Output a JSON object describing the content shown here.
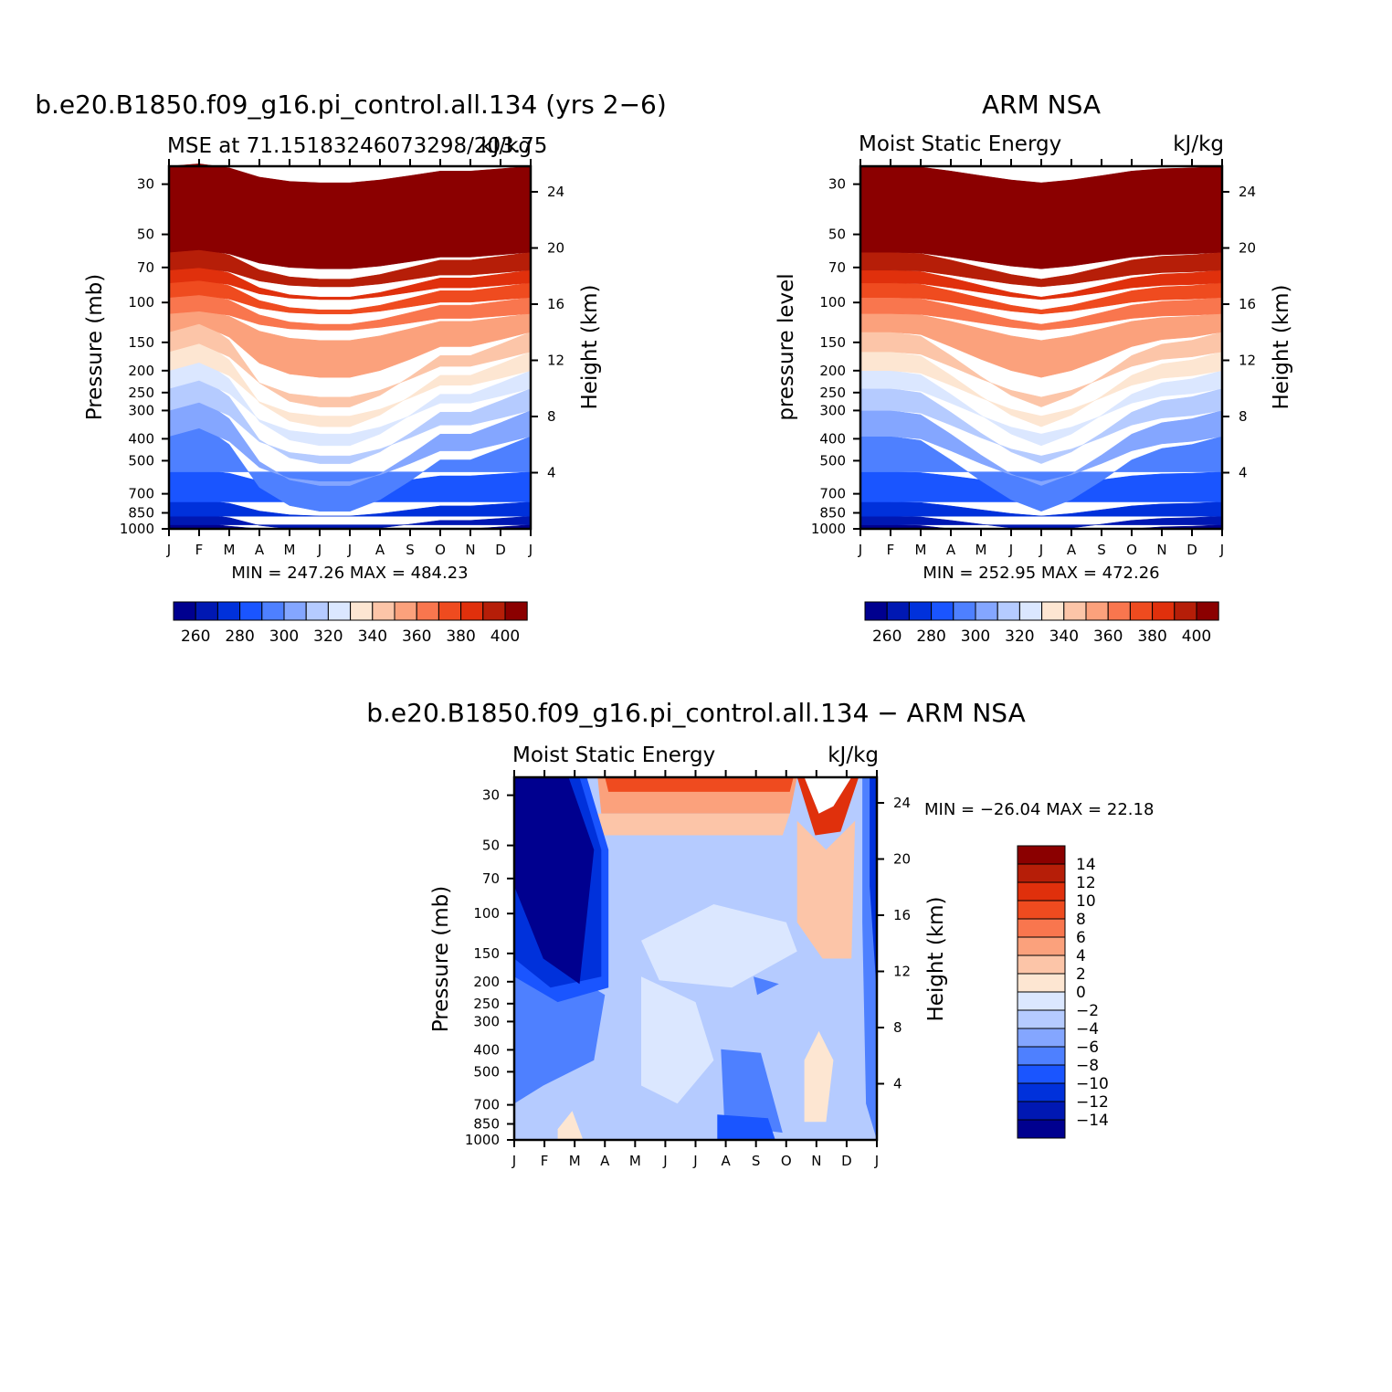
{
  "chart_data": [
    {
      "type": "heatmap",
      "title": "b.e20.B1850.f09_g16.pi_control.all.134 (yrs 2−6)",
      "subtitle_left": "MSE at 71.15183246073298/203.75",
      "subtitle_right": "kJ/kg",
      "xlabel": "",
      "ylabel": "Pressure (mb)",
      "ylabel_right": "Height (km)",
      "x_ticks": [
        "J",
        "F",
        "M",
        "A",
        "M",
        "J",
        "J",
        "A",
        "S",
        "O",
        "N",
        "D",
        "J"
      ],
      "y_ticks": [
        30,
        50,
        70,
        100,
        150,
        200,
        250,
        300,
        400,
        500,
        700,
        850,
        1000
      ],
      "y_ticks_right": [
        24,
        20,
        16,
        12,
        8,
        4
      ],
      "y_scale": "log, reversed",
      "minmax_text": "MIN = 247.26 MAX = 484.23",
      "colorbar_labels": [
        "260",
        "280",
        "300",
        "320",
        "340",
        "360",
        "380",
        "400"
      ],
      "levels_threshold_index": [
        0,
        0,
        1,
        0,
        0,
        0,
        0,
        0,
        0,
        0,
        0,
        0,
        0
      ],
      "profile_offsets": [
        0,
        -3,
        2,
        14,
        20,
        22,
        22,
        18,
        12,
        6,
        6,
        3,
        0
      ]
    },
    {
      "type": "heatmap",
      "title": "ARM NSA",
      "subtitle_left": "Moist Static Energy",
      "subtitle_right": "kJ/kg",
      "ylabel": "pressure level",
      "ylabel_right": "Height (km)",
      "x_ticks": [
        "J",
        "F",
        "M",
        "A",
        "M",
        "J",
        "J",
        "A",
        "S",
        "O",
        "N",
        "D",
        "J"
      ],
      "y_ticks": [
        30,
        50,
        70,
        100,
        150,
        200,
        250,
        300,
        400,
        500,
        700,
        850,
        1000
      ],
      "y_ticks_right": [
        24,
        20,
        16,
        12,
        8,
        4
      ],
      "y_scale": "log, reversed",
      "minmax_text": "MIN = 252.95 MAX = 472.26",
      "colorbar_labels": [
        "260",
        "280",
        "300",
        "320",
        "340",
        "360",
        "380",
        "400"
      ],
      "profile_offsets": [
        0,
        0,
        1,
        6,
        12,
        18,
        22,
        18,
        12,
        6,
        3,
        2,
        0
      ]
    },
    {
      "type": "heatmap",
      "title": "b.e20.B1850.f09_g16.pi_control.all.134 − ARM NSA",
      "subtitle_left": "Moist Static Energy",
      "subtitle_right": "kJ/kg",
      "ylabel": "Pressure (mb)",
      "ylabel_right": "Height (km)",
      "x_ticks": [
        "J",
        "F",
        "M",
        "A",
        "M",
        "J",
        "J",
        "A",
        "S",
        "O",
        "N",
        "D",
        "J"
      ],
      "y_ticks": [
        30,
        50,
        70,
        100,
        150,
        200,
        250,
        300,
        400,
        500,
        700,
        850,
        1000
      ],
      "y_ticks_right": [
        24,
        20,
        16,
        12,
        8,
        4
      ],
      "y_scale": "log, reversed",
      "minmax_text": "MIN = −26.04 MAX =   22.18",
      "colorbar_labels": [
        "14",
        "12",
        "10",
        "8",
        "6",
        "4",
        "2",
        "0",
        "−2",
        "−4",
        "−6",
        "−8",
        "−10",
        "−12",
        "−14"
      ]
    }
  ],
  "palette": [
    "#00008f",
    "#0018b3",
    "#0031db",
    "#1a55ff",
    "#4e80ff",
    "#84a6ff",
    "#b5cbff",
    "#dbe7ff",
    "#fde6d2",
    "#fcc5a8",
    "#fba17c",
    "#f9764e",
    "#ef4b1f",
    "#e0300c",
    "#b61e08",
    "#8b0000"
  ]
}
